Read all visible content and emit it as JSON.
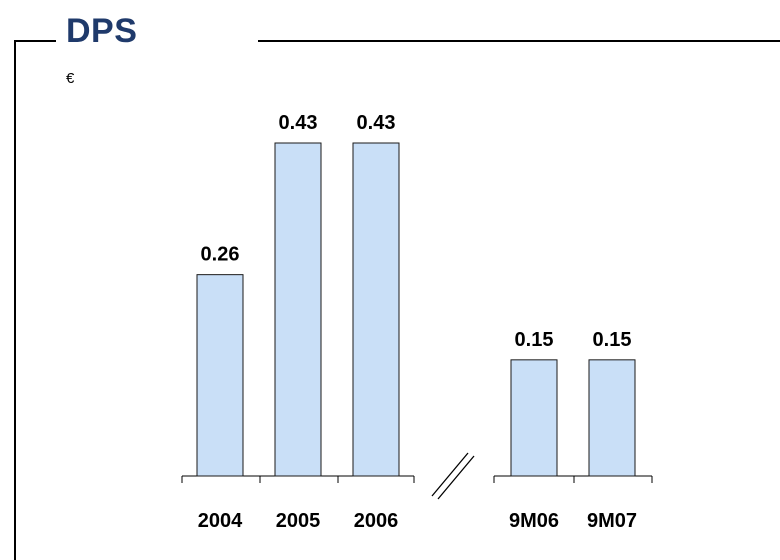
{
  "title": "DPS",
  "unit": "€",
  "chart_data": {
    "type": "bar",
    "title": "DPS",
    "ylabel": "€",
    "categories": [
      "2004",
      "2005",
      "2006",
      "9M06",
      "9M07"
    ],
    "values": [
      0.26,
      0.43,
      0.43,
      0.15,
      0.15
    ],
    "value_labels": [
      "0.26",
      "0.43",
      "0.43",
      "0.15",
      "0.15"
    ],
    "ylim": [
      0,
      0.43
    ],
    "axis_break_between": [
      "2006",
      "9M06"
    ],
    "grid": false,
    "legend": "none",
    "bar_color": "#c9dff7",
    "bar_stroke": "#1a1a1a",
    "title_color": "#1f3a6b"
  }
}
